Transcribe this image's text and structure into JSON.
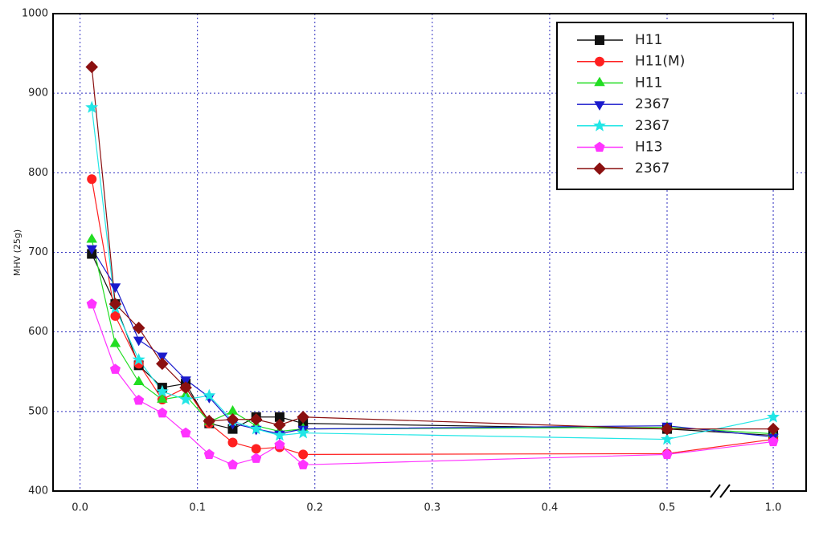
{
  "chart_data": {
    "type": "line",
    "y_label": "MHV (25g)",
    "x": [
      0.01,
      0.03,
      0.05,
      0.07,
      0.09,
      0.11,
      0.13,
      0.15,
      0.17,
      0.19,
      0.5,
      1.0
    ],
    "xlim": [
      -0.023,
      1.155
    ],
    "xticks": [
      {
        "value": 0,
        "label": "0.0"
      },
      0.1,
      0.2,
      0.3,
      0.4,
      0.5,
      {
        "value": 1,
        "label": "1.0"
      }
    ],
    "axis_break": true,
    "ylim": [
      400,
      1000
    ],
    "yticks": [
      400,
      500,
      600,
      700,
      800,
      900,
      1000
    ],
    "grid": true,
    "legend": "upper-right",
    "series": [
      {
        "name": "H11",
        "color": "#111111",
        "marker": "square",
        "values": [
          698,
          635,
          558,
          530,
          535,
          485,
          478,
          493,
          493,
          485,
          478,
          470
        ]
      },
      {
        "name": "H11(M)",
        "color": "#ff2020",
        "marker": "circle",
        "values": [
          792,
          620,
          560,
          515,
          530,
          485,
          461,
          453,
          455,
          446,
          447,
          465
        ]
      },
      {
        "name": "H11",
        "color": "#22dd22",
        "marker": "triangle-up",
        "values": [
          716,
          585,
          537,
          515,
          520,
          487,
          500,
          482,
          475,
          478,
          480,
          472
        ]
      },
      {
        "name": "2367",
        "color": "#1a1acc",
        "marker": "triangle-down",
        "values": [
          705,
          657,
          590,
          570,
          540,
          518,
          485,
          478,
          472,
          478,
          482,
          468
        ]
      },
      {
        "name": "2367",
        "color": "#22e6e6",
        "marker": "star",
        "values": [
          882,
          630,
          565,
          525,
          515,
          520,
          488,
          478,
          470,
          473,
          465,
          493
        ]
      },
      {
        "name": "H13",
        "color": "#ff33ff",
        "marker": "pentagon",
        "values": [
          635,
          553,
          514,
          498,
          473,
          446,
          433,
          441,
          458,
          433,
          446,
          462
        ]
      },
      {
        "name": "2367",
        "color": "#8b1010",
        "marker": "diamond",
        "values": [
          933,
          635,
          605,
          560,
          530,
          488,
          490,
          490,
          483,
          493,
          478,
          478
        ]
      }
    ]
  }
}
